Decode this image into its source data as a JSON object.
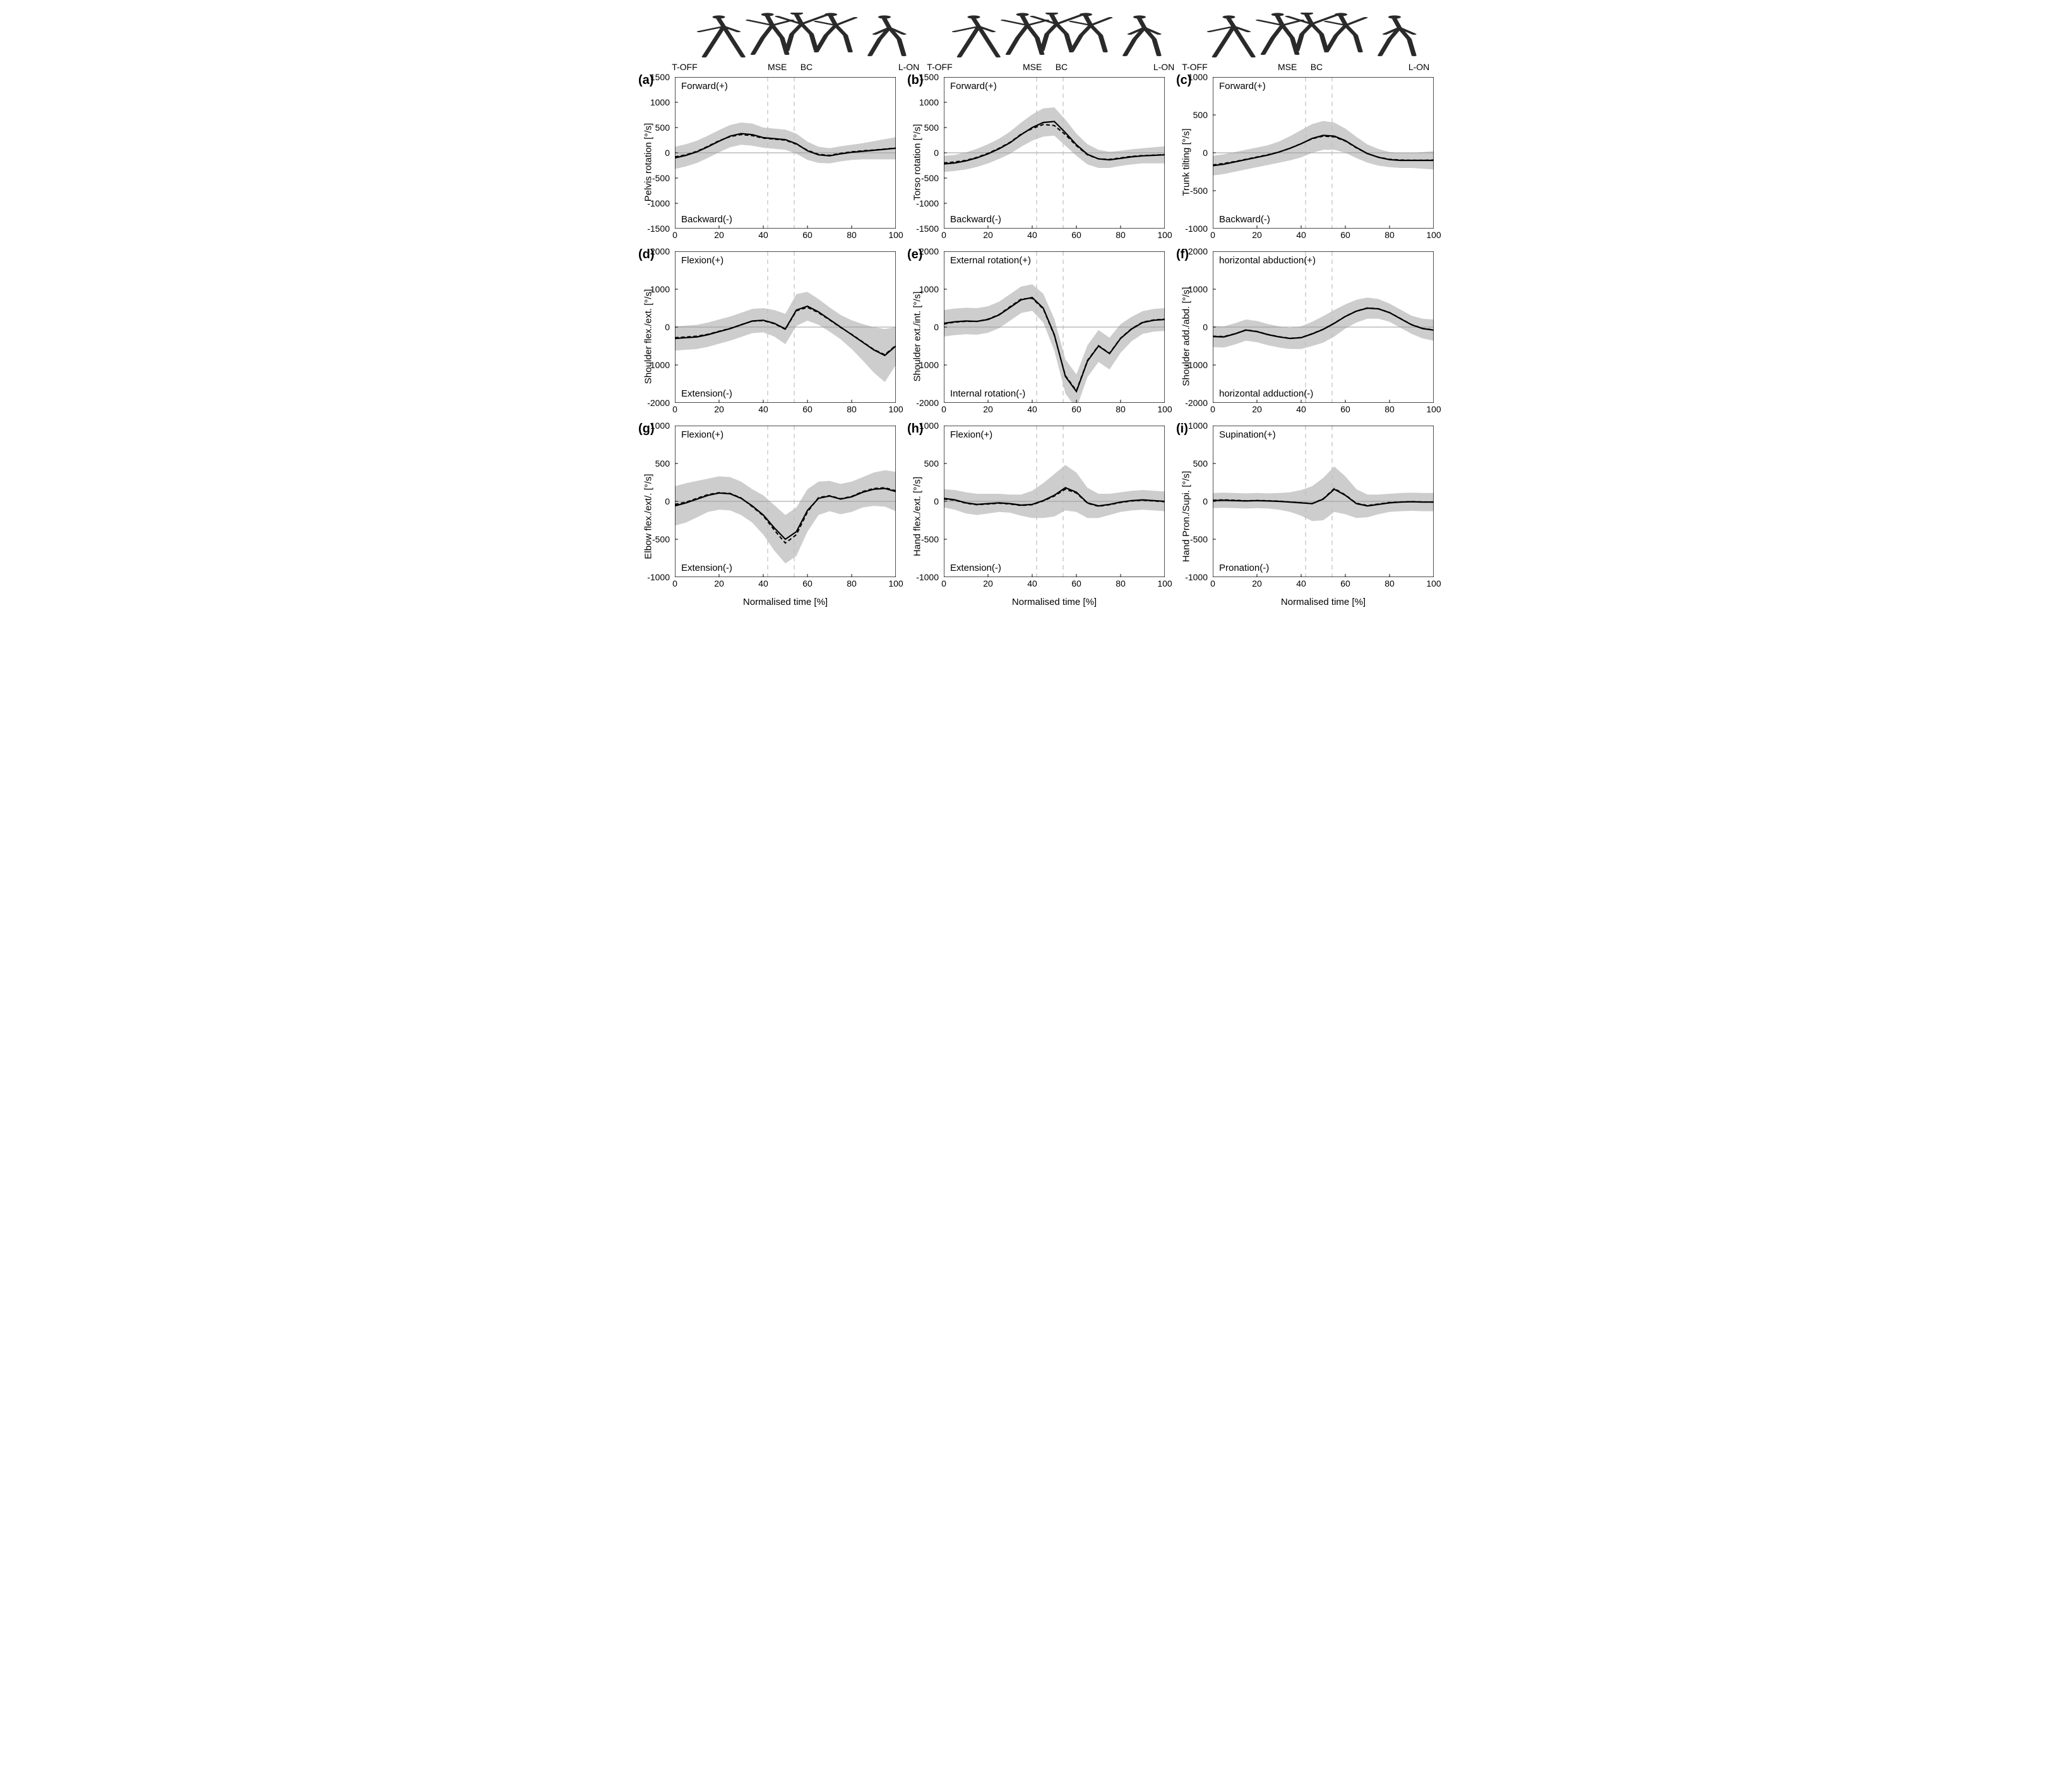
{
  "xlabel": "Normalised time [%]",
  "xlim": [
    0,
    100
  ],
  "xtick_step": 20,
  "events": [
    {
      "name": "T-OFF",
      "x": 0
    },
    {
      "name": "MSE",
      "x": 42
    },
    {
      "name": "BC",
      "x": 54
    },
    {
      "name": "L-ON",
      "x": 100
    }
  ],
  "event_vlines": [
    42,
    54
  ],
  "colors": {
    "axis": "#000000",
    "grid": "#d0d0d0",
    "zero_line": "#9a9a9a",
    "band": "#c8c8c8",
    "line1": "#000000",
    "line2": "#000000",
    "event_line": "#bdbdbd",
    "text": "#000000",
    "silhouette": "#2a2a2a",
    "background": "#ffffff"
  },
  "styles": {
    "line1_width": 2.2,
    "line2_width": 2.0,
    "line2_dash": "6 4",
    "event_line_width": 1.2,
    "event_line_dash": "7 6",
    "axis_width": 1.4,
    "label_fontsize": 15,
    "tick_fontsize": 14,
    "letter_fontsize": 20,
    "band_opacity": 0.9
  },
  "silhouettes_count": 5,
  "panels": [
    {
      "id": "a",
      "letter": "(a)",
      "ylabel": "Pelvis rotation [°/s]",
      "ylim": [
        -1500,
        1500
      ],
      "ytick_step": 500,
      "anno_pos": "Forward(+)",
      "anno_neg": "Backward(-)",
      "line1": [
        -100,
        -50,
        20,
        120,
        230,
        330,
        380,
        360,
        300,
        280,
        260,
        180,
        40,
        -40,
        -60,
        -20,
        10,
        30,
        50,
        70,
        90
      ],
      "line2": [
        -80,
        -40,
        30,
        130,
        240,
        320,
        360,
        340,
        290,
        270,
        250,
        170,
        50,
        -30,
        -50,
        -10,
        20,
        40,
        55,
        75,
        95
      ],
      "band_hw": [
        220,
        220,
        220,
        220,
        220,
        220,
        220,
        220,
        200,
        200,
        200,
        200,
        180,
        160,
        150,
        150,
        150,
        160,
        180,
        200,
        220
      ]
    },
    {
      "id": "b",
      "letter": "(b)",
      "ylabel": "Torso rotation [°/s]",
      "ylim": [
        -1500,
        1500
      ],
      "ytick_step": 500,
      "anno_pos": "Forward(+)",
      "anno_neg": "Backward(-)",
      "line1": [
        -220,
        -200,
        -160,
        -100,
        -20,
        80,
        200,
        360,
        500,
        600,
        620,
        400,
        160,
        -30,
        -120,
        -140,
        -110,
        -80,
        -60,
        -50,
        -40
      ],
      "line2": [
        -200,
        -180,
        -150,
        -90,
        -10,
        90,
        210,
        370,
        480,
        560,
        540,
        360,
        140,
        -40,
        -120,
        -130,
        -100,
        -70,
        -55,
        -45,
        -35
      ],
      "band_hw": [
        160,
        160,
        170,
        180,
        190,
        200,
        220,
        240,
        260,
        280,
        280,
        260,
        220,
        200,
        180,
        160,
        150,
        150,
        150,
        160,
        170
      ]
    },
    {
      "id": "c",
      "letter": "(c)",
      "ylabel": "Trunk tilting [°/s]",
      "ylim": [
        -1000,
        1000
      ],
      "ytick_step": 500,
      "anno_pos": "Forward(+)",
      "anno_neg": "Backward(-)",
      "line1": [
        -170,
        -150,
        -120,
        -90,
        -60,
        -30,
        10,
        60,
        120,
        190,
        230,
        220,
        160,
        70,
        -10,
        -60,
        -90,
        -100,
        -100,
        -100,
        -100
      ],
      "line2": [
        -160,
        -140,
        -115,
        -85,
        -55,
        -25,
        12,
        62,
        122,
        185,
        220,
        210,
        155,
        65,
        -12,
        -58,
        -85,
        -95,
        -98,
        -98,
        -95
      ],
      "band_hw": [
        130,
        130,
        130,
        130,
        130,
        130,
        140,
        160,
        180,
        190,
        190,
        180,
        160,
        140,
        120,
        110,
        100,
        100,
        100,
        110,
        120
      ]
    },
    {
      "id": "d",
      "letter": "(d)",
      "ylabel": "Shoulder flex./ext. [°/s]",
      "ylim": [
        -2000,
        2000
      ],
      "ytick_step": 1000,
      "anno_pos": "Flexion(+)",
      "anno_neg": "Extension(-)",
      "line1": [
        -300,
        -280,
        -260,
        -200,
        -120,
        -40,
        60,
        160,
        180,
        100,
        -50,
        450,
        550,
        400,
        200,
        0,
        -200,
        -400,
        -600,
        -750,
        -500
      ],
      "line2": [
        -280,
        -260,
        -240,
        -190,
        -110,
        -35,
        65,
        155,
        170,
        90,
        -60,
        430,
        520,
        380,
        190,
        -10,
        -190,
        -390,
        -590,
        -730,
        -480
      ],
      "band_hw": [
        320,
        320,
        320,
        320,
        320,
        320,
        320,
        320,
        320,
        350,
        400,
        420,
        380,
        340,
        320,
        320,
        380,
        480,
        600,
        700,
        500
      ]
    },
    {
      "id": "e",
      "letter": "(e)",
      "ylabel": "Shoulder ext./int. [°/s]",
      "ylim": [
        -2000,
        2000
      ],
      "ytick_step": 1000,
      "anno_pos": "External rotation(+)",
      "anno_neg": "Internal rotation(-)",
      "line1": [
        100,
        140,
        160,
        150,
        200,
        320,
        520,
        720,
        780,
        500,
        -200,
        -1300,
        -1700,
        -900,
        -500,
        -700,
        -300,
        -50,
        120,
        180,
        200
      ],
      "line2": [
        80,
        130,
        150,
        150,
        210,
        330,
        540,
        740,
        760,
        480,
        -220,
        -1280,
        -1680,
        -880,
        -490,
        -690,
        -290,
        -40,
        130,
        190,
        210
      ],
      "band_hw": [
        350,
        350,
        350,
        350,
        350,
        350,
        350,
        350,
        350,
        380,
        420,
        450,
        450,
        420,
        420,
        420,
        380,
        320,
        300,
        300,
        300
      ]
    },
    {
      "id": "f",
      "letter": "(f)",
      "ylabel": "Shoulder add./abd. [°/s]",
      "ylim": [
        -2000,
        2000
      ],
      "ytick_step": 1000,
      "anno_pos": "horizontal abduction(+)",
      "anno_neg": "horizontal adduction(-)",
      "line1": [
        -250,
        -260,
        -180,
        -80,
        -120,
        -200,
        -260,
        -300,
        -280,
        -180,
        -60,
        100,
        280,
        420,
        500,
        480,
        380,
        220,
        60,
        -40,
        -80
      ],
      "line2": [
        -240,
        -250,
        -175,
        -75,
        -115,
        -195,
        -255,
        -295,
        -275,
        -175,
        -55,
        105,
        285,
        425,
        505,
        485,
        385,
        225,
        65,
        -35,
        -75
      ],
      "band_hw": [
        280,
        280,
        280,
        280,
        280,
        280,
        280,
        280,
        300,
        320,
        350,
        350,
        320,
        300,
        280,
        260,
        240,
        240,
        240,
        260,
        280
      ]
    },
    {
      "id": "g",
      "letter": "(g)",
      "ylabel": "Elbow flex./ext/. [°/s]",
      "ylim": [
        -1000,
        1000
      ],
      "ytick_step": 500,
      "anno_pos": "Flexion(+)",
      "anno_neg": "Extension(-)",
      "line1": [
        -60,
        -20,
        30,
        80,
        110,
        100,
        40,
        -60,
        -180,
        -350,
        -500,
        -400,
        -120,
        40,
        70,
        30,
        60,
        120,
        160,
        170,
        130
      ],
      "line2": [
        -40,
        -10,
        40,
        90,
        115,
        105,
        45,
        -70,
        -190,
        -380,
        -550,
        -440,
        -140,
        50,
        75,
        35,
        65,
        130,
        170,
        180,
        140
      ],
      "band_hw": [
        260,
        260,
        240,
        220,
        220,
        220,
        220,
        220,
        260,
        300,
        320,
        320,
        280,
        220,
        200,
        200,
        200,
        200,
        220,
        240,
        260
      ]
    },
    {
      "id": "h",
      "letter": "(h)",
      "ylabel": "Hand flex./ext. [°/s]",
      "ylim": [
        -1000,
        1000
      ],
      "ytick_step": 500,
      "anno_pos": "Flexion(+)",
      "anno_neg": "Extension(-)",
      "line1": [
        40,
        20,
        -20,
        -40,
        -30,
        -20,
        -30,
        -50,
        -40,
        10,
        80,
        180,
        120,
        -20,
        -60,
        -40,
        -10,
        10,
        20,
        10,
        0
      ],
      "line2": [
        30,
        15,
        -25,
        -45,
        -35,
        -25,
        -35,
        -55,
        -45,
        5,
        70,
        160,
        110,
        -25,
        -65,
        -45,
        -15,
        5,
        15,
        5,
        -5
      ],
      "band_hw": [
        120,
        130,
        140,
        140,
        130,
        120,
        120,
        140,
        180,
        230,
        280,
        300,
        260,
        200,
        160,
        140,
        130,
        130,
        130,
        130,
        130
      ]
    },
    {
      "id": "i",
      "letter": "(i)",
      "ylabel": "Hand Pron./Supi. [°/s]",
      "ylim": [
        -1000,
        1000
      ],
      "ytick_step": 500,
      "anno_pos": "Supination(+)",
      "anno_neg": "Pronation(-)",
      "line1": [
        10,
        15,
        10,
        5,
        10,
        5,
        0,
        -10,
        -20,
        -30,
        30,
        160,
        80,
        -30,
        -60,
        -40,
        -20,
        -10,
        -5,
        -10,
        -10
      ],
      "line2": [
        15,
        20,
        15,
        8,
        12,
        8,
        3,
        -8,
        -18,
        -28,
        35,
        170,
        85,
        -25,
        -55,
        -35,
        -15,
        -8,
        -2,
        -8,
        -8
      ],
      "band_hw": [
        100,
        100,
        100,
        100,
        100,
        100,
        110,
        130,
        170,
        230,
        280,
        300,
        250,
        190,
        150,
        130,
        120,
        120,
        120,
        120,
        120
      ]
    }
  ]
}
